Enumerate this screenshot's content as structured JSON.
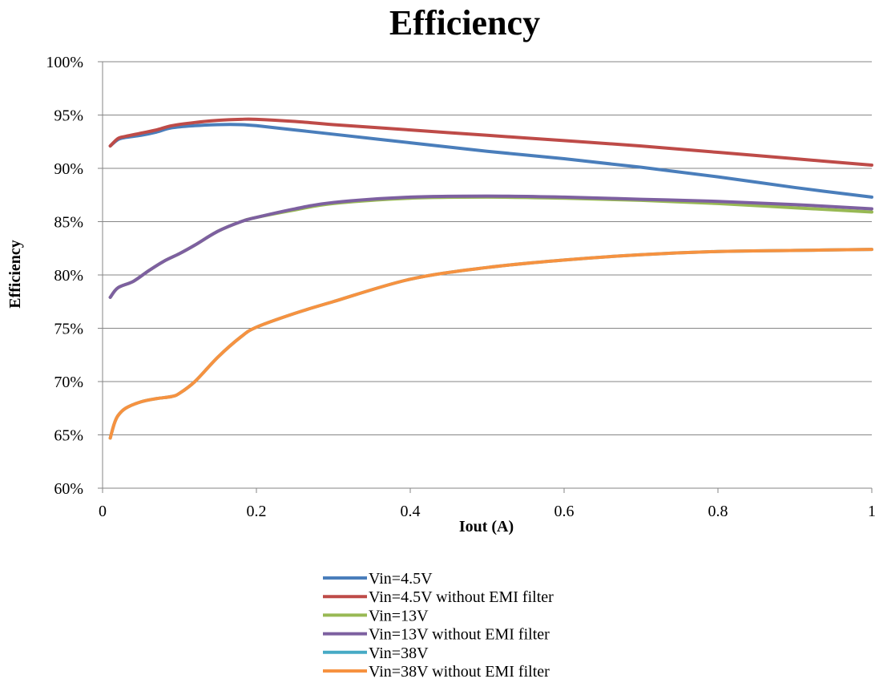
{
  "chart_data": {
    "type": "line",
    "title": "Efficiency",
    "xlabel": "Iout (A)",
    "ylabel": "Efficiency",
    "xlim": [
      0,
      1
    ],
    "ylim": [
      60,
      100
    ],
    "x_ticks": [
      0,
      0.2,
      0.4,
      0.6,
      0.8,
      1
    ],
    "x_tick_labels": [
      "0",
      "0.2",
      "0.4",
      "0.6",
      "0.8",
      "1"
    ],
    "y_ticks": [
      60,
      65,
      70,
      75,
      80,
      85,
      90,
      95,
      100
    ],
    "y_tick_labels": [
      "60%",
      "65%",
      "70%",
      "75%",
      "80%",
      "85%",
      "90%",
      "95%",
      "100%"
    ],
    "grid": "horizontal",
    "legend_position": "bottom",
    "series": [
      {
        "name": "Vin=4.5V",
        "color": "#4a7ebb",
        "x": [
          0.01,
          0.02,
          0.03,
          0.05,
          0.07,
          0.09,
          0.12,
          0.15,
          0.18,
          0.2,
          0.25,
          0.3,
          0.4,
          0.5,
          0.6,
          0.7,
          0.8,
          0.9,
          1.0
        ],
        "y": [
          92.1,
          92.7,
          92.9,
          93.1,
          93.4,
          93.8,
          94.0,
          94.1,
          94.1,
          94.0,
          93.6,
          93.2,
          92.4,
          91.6,
          90.9,
          90.1,
          89.2,
          88.2,
          87.3
        ]
      },
      {
        "name": "Vin=4.5V without EMI filter",
        "color": "#be4b48",
        "x": [
          0.01,
          0.02,
          0.03,
          0.05,
          0.07,
          0.09,
          0.12,
          0.15,
          0.18,
          0.2,
          0.25,
          0.3,
          0.4,
          0.5,
          0.6,
          0.7,
          0.8,
          0.9,
          1.0
        ],
        "y": [
          92.1,
          92.8,
          93.0,
          93.3,
          93.6,
          94.0,
          94.3,
          94.5,
          94.6,
          94.6,
          94.4,
          94.1,
          93.6,
          93.1,
          92.6,
          92.1,
          91.5,
          90.9,
          90.3
        ]
      },
      {
        "name": "Vin=13V",
        "color": "#98b954",
        "x": [
          0.01,
          0.02,
          0.04,
          0.06,
          0.08,
          0.1,
          0.12,
          0.15,
          0.18,
          0.2,
          0.25,
          0.3,
          0.4,
          0.5,
          0.6,
          0.7,
          0.8,
          0.9,
          1.0
        ],
        "y": [
          77.9,
          78.8,
          79.4,
          80.4,
          81.3,
          82.0,
          82.8,
          84.1,
          85.0,
          85.4,
          86.1,
          86.7,
          87.2,
          87.3,
          87.2,
          87.0,
          86.7,
          86.3,
          85.9
        ]
      },
      {
        "name": "Vin=13V without EMI filter",
        "color": "#7d60a0",
        "x": [
          0.01,
          0.02,
          0.04,
          0.06,
          0.08,
          0.1,
          0.12,
          0.15,
          0.18,
          0.2,
          0.25,
          0.3,
          0.4,
          0.5,
          0.6,
          0.7,
          0.8,
          0.9,
          1.0
        ],
        "y": [
          77.9,
          78.8,
          79.4,
          80.4,
          81.3,
          82.0,
          82.8,
          84.1,
          85.0,
          85.4,
          86.2,
          86.8,
          87.3,
          87.4,
          87.3,
          87.1,
          86.9,
          86.6,
          86.2
        ]
      },
      {
        "name": "Vin=38V",
        "color": "#46aac5",
        "x": [
          0.01,
          0.015,
          0.02,
          0.03,
          0.05,
          0.07,
          0.09,
          0.1,
          0.12,
          0.15,
          0.18,
          0.2,
          0.25,
          0.3,
          0.4,
          0.5,
          0.6,
          0.7,
          0.8,
          0.9,
          1.0
        ],
        "y": [
          64.7,
          66.0,
          66.8,
          67.5,
          68.1,
          68.4,
          68.6,
          68.9,
          70.0,
          72.3,
          74.2,
          75.1,
          76.4,
          77.5,
          79.6,
          80.7,
          81.4,
          81.9,
          82.2,
          82.3,
          82.4
        ]
      },
      {
        "name": "Vin=38V without EMI filter",
        "color": "#f69240",
        "x": [
          0.01,
          0.015,
          0.02,
          0.03,
          0.05,
          0.07,
          0.09,
          0.1,
          0.12,
          0.15,
          0.18,
          0.2,
          0.25,
          0.3,
          0.4,
          0.5,
          0.6,
          0.7,
          0.8,
          0.9,
          1.0
        ],
        "y": [
          64.7,
          66.0,
          66.8,
          67.5,
          68.1,
          68.4,
          68.6,
          68.9,
          70.0,
          72.3,
          74.2,
          75.1,
          76.4,
          77.5,
          79.6,
          80.7,
          81.4,
          81.9,
          82.2,
          82.3,
          82.4
        ]
      }
    ]
  }
}
